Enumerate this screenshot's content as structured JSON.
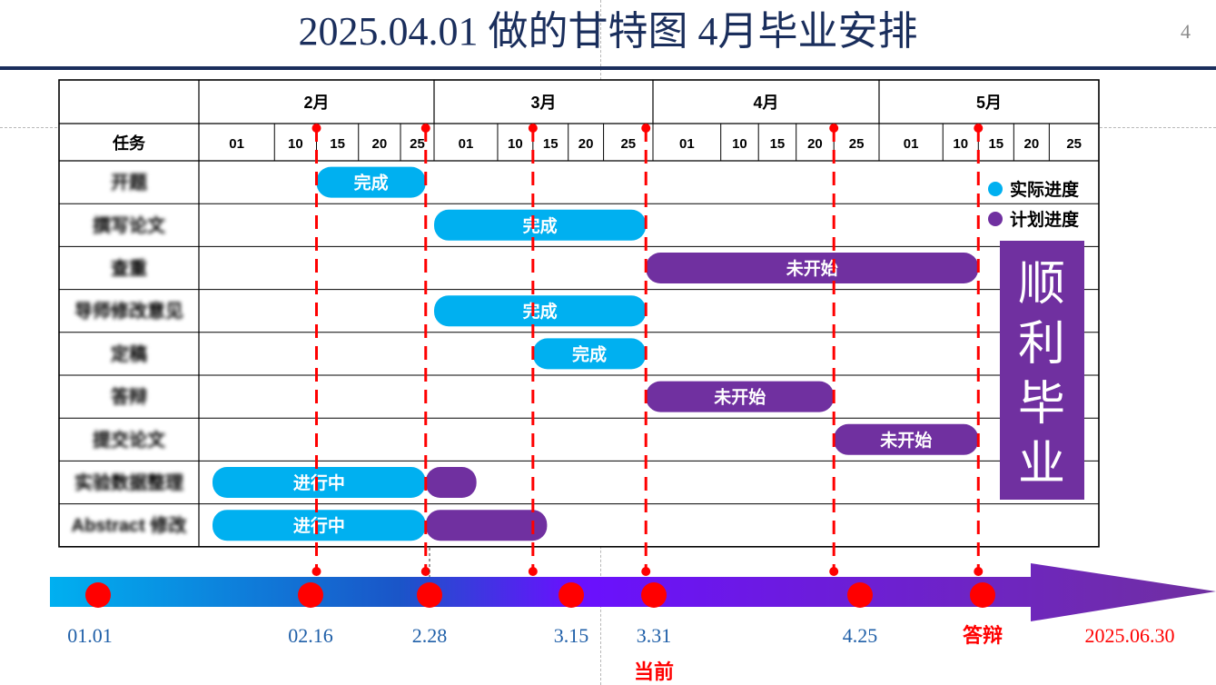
{
  "title": "2025.04.01 做的甘特图 4月毕业安排",
  "page_number": "4",
  "colors": {
    "actual": "#00b0f0",
    "plan": "#7030a0",
    "milestone": "#ff0000",
    "title": "#1a2e5c"
  },
  "table": {
    "task_header": "任务",
    "months": [
      "2月",
      "3月",
      "4月",
      "5月"
    ],
    "days": [
      [
        "01",
        "10",
        "15",
        "20",
        "25"
      ],
      [
        "01",
        "10",
        "15",
        "20",
        "25"
      ],
      [
        "01",
        "10",
        "15",
        "20",
        "25"
      ],
      [
        "01",
        "10",
        "15",
        "20",
        "25"
      ]
    ],
    "tasks": [
      "开题",
      "撰写论文",
      "查重",
      "导师修改意见",
      "定稿",
      "答辩",
      "提交论文",
      "实验数据整理",
      "Abstract 修改"
    ]
  },
  "chart_data": {
    "type": "gantt",
    "x_unit": "day of year 2025",
    "bars": [
      {
        "task": 0,
        "kind": "actual",
        "start": 46,
        "end": 59,
        "label": "完成"
      },
      {
        "task": 1,
        "kind": "actual",
        "start": 60,
        "end": 90,
        "label": "完成"
      },
      {
        "task": 2,
        "kind": "plan",
        "start": 90,
        "end": 135,
        "label": "未开始"
      },
      {
        "task": 3,
        "kind": "actual",
        "start": 60,
        "end": 90,
        "label": "完成"
      },
      {
        "task": 4,
        "kind": "actual",
        "start": 74,
        "end": 90,
        "label": "完成"
      },
      {
        "task": 5,
        "kind": "plan",
        "start": 90,
        "end": 115,
        "label": "未开始"
      },
      {
        "task": 6,
        "kind": "plan",
        "start": 115,
        "end": 135,
        "label": "未开始"
      },
      {
        "task": 7,
        "kind": "plan",
        "start": 59,
        "end": 66,
        "label": ""
      },
      {
        "task": 7,
        "kind": "actual",
        "start": 32,
        "end": 59,
        "label": "进行中"
      },
      {
        "task": 8,
        "kind": "plan",
        "start": 59,
        "end": 76,
        "label": ""
      },
      {
        "task": 8,
        "kind": "actual",
        "start": 32,
        "end": 59,
        "label": "进行中"
      }
    ],
    "milestone_days": [
      46,
      59,
      74,
      90,
      115,
      135
    ]
  },
  "legend": {
    "actual": "实际进度",
    "plan": "计划进度"
  },
  "banner": [
    "顺",
    "利",
    "毕",
    "业"
  ],
  "timeline": {
    "points": [
      {
        "label": "01.01",
        "color": "#1f5fa8"
      },
      {
        "label": "02.16",
        "color": "#1f5fa8"
      },
      {
        "label": "2.28",
        "color": "#1f5fa8"
      },
      {
        "label": "3.15",
        "color": "#1f5fa8"
      },
      {
        "label": "3.31",
        "color": "#1f5fa8"
      },
      {
        "label": "4.25",
        "color": "#1f5fa8"
      },
      {
        "label": "答辩",
        "color": "#ff0000"
      }
    ],
    "end_label": "2025.06.30",
    "current_label": "当前"
  }
}
